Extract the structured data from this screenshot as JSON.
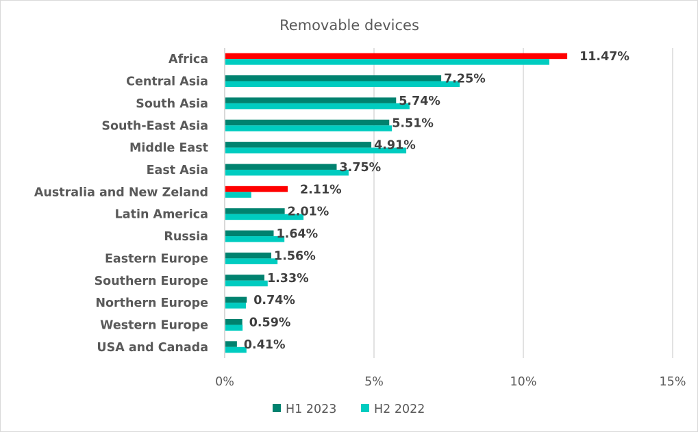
{
  "chart_data": {
    "type": "bar",
    "orientation": "horizontal",
    "title": "Removable devices",
    "xlabel": "",
    "ylabel": "",
    "xlim": [
      0,
      15
    ],
    "x_ticks": [
      0,
      5,
      10,
      15
    ],
    "x_tick_labels": [
      "0%",
      "5%",
      "10%",
      "15%"
    ],
    "grid": "vertical",
    "legend_position": "bottom",
    "categories": [
      "Africa",
      "Central Asia",
      "South Asia",
      "South-East Asia",
      "Middle East",
      "East Asia",
      "Australia and New Zeland",
      "Latin America",
      "Russia",
      "Eastern Europe",
      "Southern Europe",
      "Northern Europe",
      "Western Europe",
      "USA and Canada"
    ],
    "series": [
      {
        "name": "H1 2023",
        "color": "#00826F",
        "values": [
          11.47,
          7.25,
          5.74,
          5.51,
          4.91,
          3.75,
          2.11,
          2.01,
          1.64,
          1.56,
          1.33,
          0.74,
          0.59,
          0.41
        ],
        "highlight_color": "#FF0000",
        "highlighted_categories": [
          "Africa",
          "Australia and New Zeland"
        ]
      },
      {
        "name": "H2 2022",
        "color": "#00CCC0",
        "values": [
          10.87,
          7.87,
          6.19,
          5.6,
          6.08,
          4.15,
          0.89,
          2.64,
          2.0,
          1.77,
          1.44,
          0.71,
          0.6,
          0.73
        ]
      }
    ],
    "data_labels": [
      "11.47%",
      "7.25%",
      "5.74%",
      "5.51%",
      "4.91%",
      "3.75%",
      "2.11%",
      "2.01%",
      "1.64%",
      "1.56%",
      "1.33%",
      "0.74%",
      "0.59%",
      "0.41%"
    ]
  },
  "colors": {
    "gridline": "#D9D9D9",
    "axis": "#D9D9D9"
  }
}
